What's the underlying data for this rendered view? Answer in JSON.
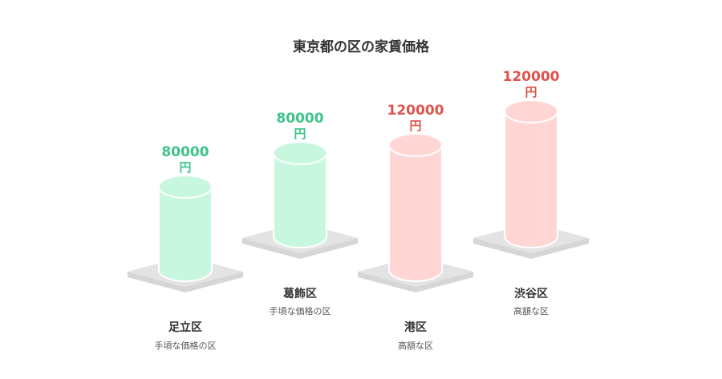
{
  "chart_data": {
    "type": "bar",
    "title": "東京都の区の家賃価格",
    "categories": [
      "足立区",
      "葛飾区",
      "港区",
      "渋谷区"
    ],
    "descriptions": [
      "手頃な価格の区",
      "手頃な価格の区",
      "高額な区",
      "高額な区"
    ],
    "values": [
      80000,
      80000,
      120000,
      120000
    ],
    "unit": "円",
    "colors": {
      "low_fill": "#c8f7e0",
      "low_text": "#3cc48a",
      "high_fill": "#ffd6d4",
      "high_text": "#e0524d",
      "platform": "#e3e3e3"
    }
  }
}
